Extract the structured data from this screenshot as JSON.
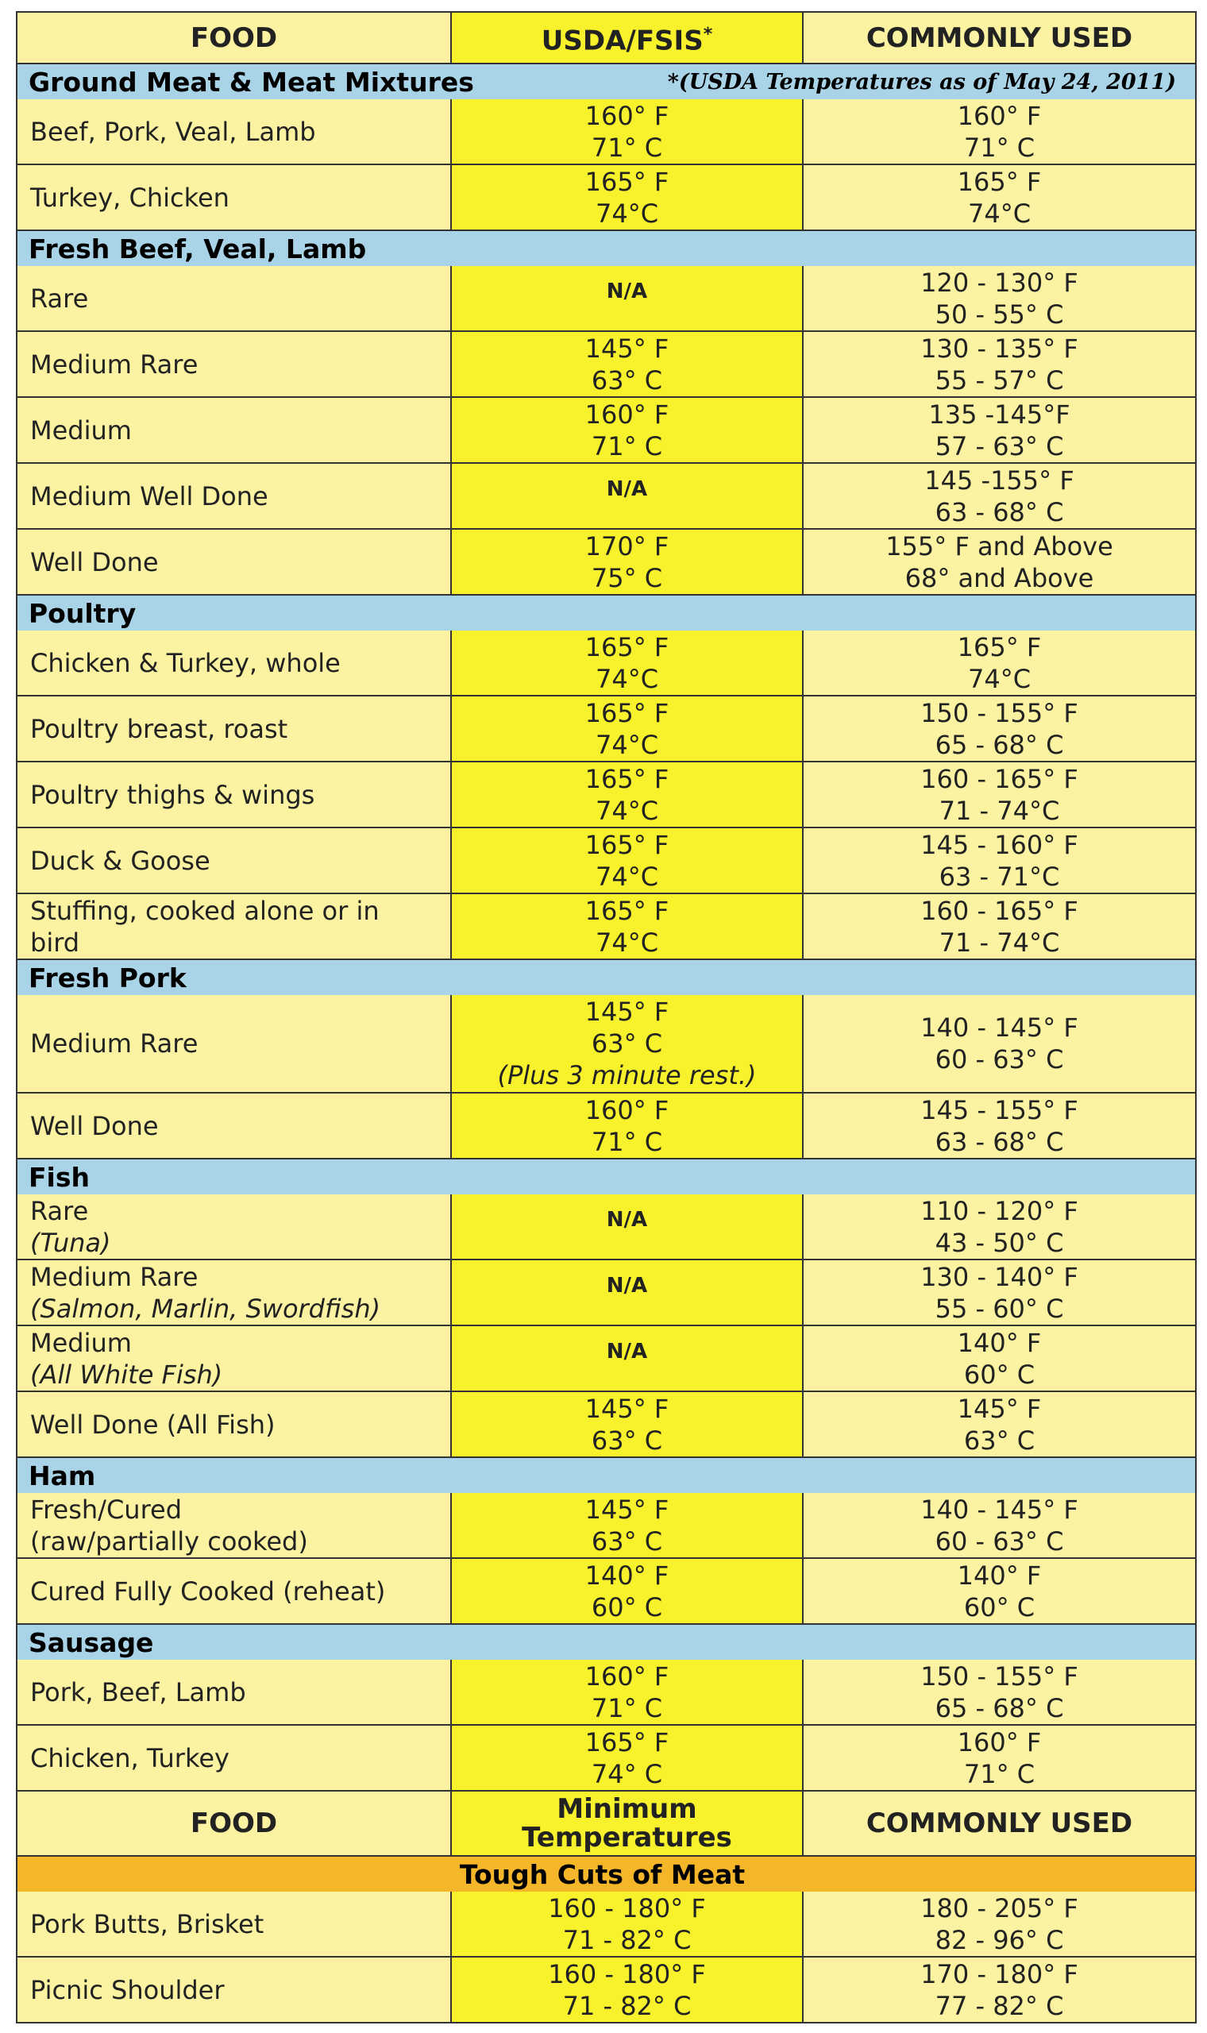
{
  "header": {
    "food": "FOOD",
    "usda": "USDA/FSIS",
    "asterisk": "*",
    "common": "COMMONLY USED"
  },
  "note": "*(USDA Temperatures as of May 24, 2011)",
  "sections": [
    {
      "title": "Ground Meat & Meat Mixtures",
      "rows": [
        {
          "food": [
            "Beef, Pork, Veal, Lamb"
          ],
          "usda": [
            "160° F",
            "71° C"
          ],
          "common": [
            "160° F",
            "71° C"
          ]
        },
        {
          "food": [
            "Turkey, Chicken"
          ],
          "usda": [
            "165° F",
            "74°C"
          ],
          "common": [
            "165° F",
            "74°C"
          ]
        }
      ]
    },
    {
      "title": "Fresh Beef, Veal, Lamb",
      "rows": [
        {
          "food": [
            "Rare"
          ],
          "usda": [
            "N/A"
          ],
          "common": [
            "120 - 130° F",
            "50 - 55° C"
          ]
        },
        {
          "food": [
            "Medium Rare"
          ],
          "usda": [
            "145° F",
            "63° C"
          ],
          "common": [
            "130 - 135° F",
            "55 - 57° C"
          ]
        },
        {
          "food": [
            "Medium"
          ],
          "usda": [
            "160° F",
            "71° C"
          ],
          "common": [
            "135 -145°F",
            "57 - 63° C"
          ]
        },
        {
          "food": [
            "Medium Well Done"
          ],
          "usda": [
            "N/A"
          ],
          "common": [
            "145 -155° F",
            "63 - 68° C"
          ]
        },
        {
          "food": [
            "Well Done"
          ],
          "usda": [
            "170° F",
            "75° C"
          ],
          "common": [
            "155° F and Above",
            "68° and Above"
          ]
        }
      ]
    },
    {
      "title": "Poultry",
      "rows": [
        {
          "food": [
            "Chicken & Turkey, whole"
          ],
          "usda": [
            "165° F",
            "74°C"
          ],
          "common": [
            "165° F",
            "74°C"
          ]
        },
        {
          "food": [
            "Poultry breast, roast"
          ],
          "usda": [
            "165° F",
            "74°C"
          ],
          "common": [
            "150 - 155° F",
            "65 - 68° C"
          ]
        },
        {
          "food": [
            "Poultry thighs & wings"
          ],
          "usda": [
            "165° F",
            "74°C"
          ],
          "common": [
            "160 - 165° F",
            "71 - 74°C"
          ]
        },
        {
          "food": [
            "Duck & Goose"
          ],
          "usda": [
            "165° F",
            "74°C"
          ],
          "common": [
            "145 - 160° F",
            "63 - 71°C"
          ]
        },
        {
          "food": [
            "Stuffing, cooked alone or in",
            "bird"
          ],
          "usda": [
            "165° F",
            "74°C"
          ],
          "common": [
            "160 - 165° F",
            "71 - 74°C"
          ]
        }
      ]
    },
    {
      "title": "Fresh Pork",
      "rows": [
        {
          "food": [
            "Medium Rare"
          ],
          "usda": [
            "145° F",
            "63° C"
          ],
          "usda_note": "(Plus 3 minute rest.)",
          "common": [
            "140 - 145° F",
            "60 - 63° C"
          ]
        },
        {
          "food": [
            "Well Done"
          ],
          "usda": [
            "160° F",
            "71° C"
          ],
          "common": [
            "145 - 155° F",
            "63 - 68° C"
          ]
        }
      ]
    },
    {
      "title": "Fish",
      "rows": [
        {
          "food": [
            "Rare"
          ],
          "food_note": "(Tuna)",
          "usda": [
            "N/A"
          ],
          "common": [
            "110 - 120° F",
            "43 - 50° C"
          ]
        },
        {
          "food": [
            "Medium Rare"
          ],
          "food_note": "(Salmon, Marlin, Swordfish)",
          "usda": [
            "N/A"
          ],
          "common": [
            "130 - 140° F",
            "55 - 60° C"
          ]
        },
        {
          "food": [
            "Medium"
          ],
          "food_note": "(All White Fish)",
          "usda": [
            "N/A"
          ],
          "common": [
            "140° F",
            "60° C"
          ]
        },
        {
          "food": [
            "Well Done (All Fish)"
          ],
          "usda": [
            "145° F",
            "63° C"
          ],
          "common": [
            "145° F",
            "63° C"
          ]
        }
      ]
    },
    {
      "title": "Ham",
      "rows": [
        {
          "food": [
            "Fresh/Cured",
            "(raw/partially cooked)"
          ],
          "usda": [
            "145° F",
            "63° C"
          ],
          "common": [
            "140 - 145° F",
            "60 - 63° C"
          ]
        },
        {
          "food": [
            "Cured Fully Cooked (reheat)"
          ],
          "usda": [
            "140° F",
            "60° C"
          ],
          "common": [
            "140° F",
            "60° C"
          ]
        }
      ]
    },
    {
      "title": "Sausage",
      "rows": [
        {
          "food": [
            "Pork, Beef, Lamb"
          ],
          "usda": [
            "160° F",
            "71° C"
          ],
          "common": [
            "150 - 155° F",
            "65 - 68° C"
          ]
        },
        {
          "food": [
            "Chicken, Turkey"
          ],
          "usda": [
            "165° F",
            "74° C"
          ],
          "common": [
            "160° F",
            "71° C"
          ]
        }
      ]
    }
  ],
  "header2": {
    "food": "FOOD",
    "usda": [
      "Minimum",
      "Temperatures"
    ],
    "common": "COMMONLY USED"
  },
  "sections2": [
    {
      "title": "Tough Cuts of Meat",
      "rows": [
        {
          "food": [
            "Pork Butts, Brisket"
          ],
          "usda": [
            "160 - 180° F",
            "71 - 82° C"
          ],
          "common": [
            "180 - 205° F",
            "82 - 96° C"
          ]
        },
        {
          "food": [
            "Picnic Shoulder"
          ],
          "usda": [
            "160 - 180° F",
            "71 - 82° C"
          ],
          "common": [
            "170 - 180° F",
            "77 - 82° C"
          ]
        }
      ]
    }
  ]
}
